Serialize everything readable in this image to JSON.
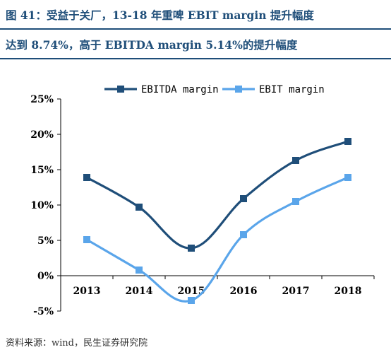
{
  "header": {
    "line1": "图 41：受益于关厂，13-18 年重啤 EBIT margin 提升幅度",
    "line2": "达到 8.74%，高于 EBITDA margin 5.14%的提升幅度"
  },
  "footer": {
    "source": "资料来源：wind，民生证券研究院"
  },
  "colors": {
    "title": "#1f4e79",
    "ebitda": "#1f4e79",
    "ebit": "#5aa5ea"
  },
  "chart_data": {
    "type": "line",
    "categories": [
      "2013",
      "2014",
      "2015",
      "2016",
      "2017",
      "2018"
    ],
    "series": [
      {
        "name": "EBITDA margin",
        "values": [
          13.9,
          9.7,
          3.9,
          10.9,
          16.3,
          19.0
        ]
      },
      {
        "name": "EBIT margin",
        "values": [
          5.1,
          0.8,
          -3.5,
          5.8,
          10.5,
          13.9
        ]
      }
    ],
    "ylim": [
      -5,
      25
    ],
    "yticks": [
      "-5%",
      "0%",
      "5%",
      "10%",
      "15%",
      "20%",
      "25%"
    ],
    "legend": "top-center",
    "grid": false,
    "smooth": true
  }
}
